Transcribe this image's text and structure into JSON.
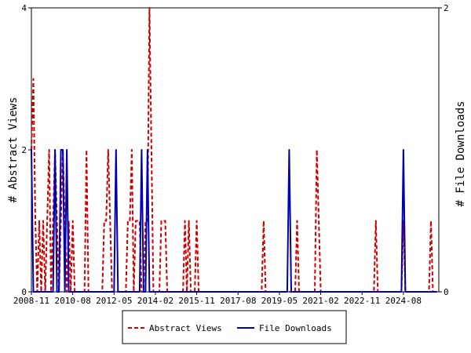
{
  "chart_data": {
    "type": "line",
    "left_axis": {
      "label": "# Abstract Views",
      "ylim": [
        0,
        4
      ],
      "ticks": [
        "0",
        "2",
        "4"
      ]
    },
    "right_axis": {
      "label": "# File Downloads",
      "ylim": [
        0,
        2
      ],
      "ticks": [
        "0",
        "2"
      ]
    },
    "x_axis": {
      "range": [
        "2008-11",
        "2026-02"
      ],
      "ticks": [
        "2008-11",
        "2010-08",
        "2012-05",
        "2014-02",
        "2015-11",
        "2017-08",
        "2019-05",
        "2021-02",
        "2022-11",
        "2024-08"
      ]
    },
    "grid": false,
    "legend_position": "bottom",
    "series": [
      {
        "name": "Abstract Views",
        "axis": "left",
        "color": "#cc0000",
        "style": "dashed",
        "points": [
          [
            "2008-11",
            2
          ],
          [
            "2008-12",
            3
          ],
          [
            "2009-01",
            1
          ],
          [
            "2009-02",
            0
          ],
          [
            "2009-03",
            1
          ],
          [
            "2009-04",
            0
          ],
          [
            "2009-05",
            1
          ],
          [
            "2009-06",
            0
          ],
          [
            "2009-07",
            1
          ],
          [
            "2009-08",
            2
          ],
          [
            "2009-09",
            0
          ],
          [
            "2009-10",
            1
          ],
          [
            "2009-11",
            2
          ],
          [
            "2009-12",
            1
          ],
          [
            "2010-01",
            0
          ],
          [
            "2010-02",
            1
          ],
          [
            "2010-03",
            2
          ],
          [
            "2010-04",
            1
          ],
          [
            "2010-05",
            0
          ],
          [
            "2010-06",
            1
          ],
          [
            "2010-07",
            0
          ],
          [
            "2010-08",
            1
          ],
          [
            "2010-09",
            0
          ],
          [
            "2010-10",
            0
          ],
          [
            "2010-11",
            0
          ],
          [
            "2010-12",
            0
          ],
          [
            "2011-01",
            0
          ],
          [
            "2011-02",
            0
          ],
          [
            "2011-03",
            2
          ],
          [
            "2011-04",
            0
          ],
          [
            "2011-05",
            0
          ],
          [
            "2011-06",
            0
          ],
          [
            "2011-07",
            0
          ],
          [
            "2011-08",
            0
          ],
          [
            "2011-09",
            0
          ],
          [
            "2011-10",
            0
          ],
          [
            "2011-11",
            0
          ],
          [
            "2011-12",
            1
          ],
          [
            "2012-01",
            1
          ],
          [
            "2012-02",
            2
          ],
          [
            "2012-03",
            1
          ],
          [
            "2012-04",
            0
          ],
          [
            "2012-05",
            0
          ],
          [
            "2012-06",
            0
          ],
          [
            "2012-07",
            0
          ],
          [
            "2012-08",
            0
          ],
          [
            "2012-09",
            0
          ],
          [
            "2012-10",
            0
          ],
          [
            "2012-11",
            0
          ],
          [
            "2012-12",
            1
          ],
          [
            "2013-01",
            1
          ],
          [
            "2013-02",
            2
          ],
          [
            "2013-03",
            0
          ],
          [
            "2013-04",
            1
          ],
          [
            "2013-05",
            1
          ],
          [
            "2013-06",
            1
          ],
          [
            "2013-07",
            0
          ],
          [
            "2013-08",
            0
          ],
          [
            "2013-09",
            1
          ],
          [
            "2013-10",
            1
          ],
          [
            "2013-11",
            4
          ],
          [
            "2013-12",
            2
          ],
          [
            "2014-01",
            0
          ],
          [
            "2014-02",
            0
          ],
          [
            "2014-03",
            0
          ],
          [
            "2014-04",
            0
          ],
          [
            "2014-05",
            1
          ],
          [
            "2014-06",
            1
          ],
          [
            "2014-07",
            1
          ],
          [
            "2014-08",
            0
          ],
          [
            "2014-09",
            0
          ],
          [
            "2014-10",
            0
          ],
          [
            "2014-11",
            0
          ],
          [
            "2014-12",
            0
          ],
          [
            "2015-01",
            0
          ],
          [
            "2015-02",
            0
          ],
          [
            "2015-03",
            0
          ],
          [
            "2015-04",
            0
          ],
          [
            "2015-05",
            1
          ],
          [
            "2015-06",
            0
          ],
          [
            "2015-07",
            1
          ],
          [
            "2015-08",
            0
          ],
          [
            "2015-09",
            0
          ],
          [
            "2015-10",
            0
          ],
          [
            "2015-11",
            1
          ],
          [
            "2015-12",
            0
          ],
          [
            "2016-01",
            0
          ],
          [
            "2016-02",
            0
          ],
          [
            "2016-03",
            0
          ],
          [
            "2016-04",
            0
          ],
          [
            "2018-08",
            0
          ],
          [
            "2018-09",
            1
          ],
          [
            "2018-10",
            0
          ],
          [
            "2020-01",
            0
          ],
          [
            "2020-02",
            1
          ],
          [
            "2020-03",
            0
          ],
          [
            "2020-11",
            0
          ],
          [
            "2020-12",
            2
          ],
          [
            "2021-01",
            1
          ],
          [
            "2021-02",
            0
          ],
          [
            "2023-05",
            0
          ],
          [
            "2023-06",
            1
          ],
          [
            "2023-07",
            0
          ],
          [
            "2024-07",
            0
          ],
          [
            "2024-08",
            1
          ],
          [
            "2024-09",
            0
          ],
          [
            "2025-09",
            0
          ],
          [
            "2025-10",
            1
          ],
          [
            "2025-11",
            0
          ],
          [
            "2026-01",
            0
          ]
        ]
      },
      {
        "name": "File Downloads",
        "axis": "right",
        "color": "#0000b0",
        "style": "solid",
        "points": [
          [
            "2008-11",
            1
          ],
          [
            "2008-12",
            0
          ],
          [
            "2009-01",
            0
          ],
          [
            "2009-06",
            0
          ],
          [
            "2009-07",
            0
          ],
          [
            "2009-08",
            0
          ],
          [
            "2009-10",
            0
          ],
          [
            "2009-11",
            1
          ],
          [
            "2009-12",
            0
          ],
          [
            "2010-01",
            0
          ],
          [
            "2010-02",
            1
          ],
          [
            "2010-03",
            1
          ],
          [
            "2010-04",
            0
          ],
          [
            "2010-05",
            1
          ],
          [
            "2010-06",
            0
          ],
          [
            "2010-07",
            0
          ],
          [
            "2012-05",
            0
          ],
          [
            "2012-06",
            1
          ],
          [
            "2012-07",
            0
          ],
          [
            "2013-06",
            0
          ],
          [
            "2013-07",
            1
          ],
          [
            "2013-08",
            0
          ],
          [
            "2013-09",
            0
          ],
          [
            "2013-10",
            1
          ],
          [
            "2013-11",
            0
          ],
          [
            "2019-09",
            0
          ],
          [
            "2019-10",
            1
          ],
          [
            "2019-11",
            0
          ],
          [
            "2024-07",
            0
          ],
          [
            "2024-08",
            1
          ],
          [
            "2024-09",
            0
          ],
          [
            "2026-01",
            0
          ]
        ]
      }
    ]
  }
}
